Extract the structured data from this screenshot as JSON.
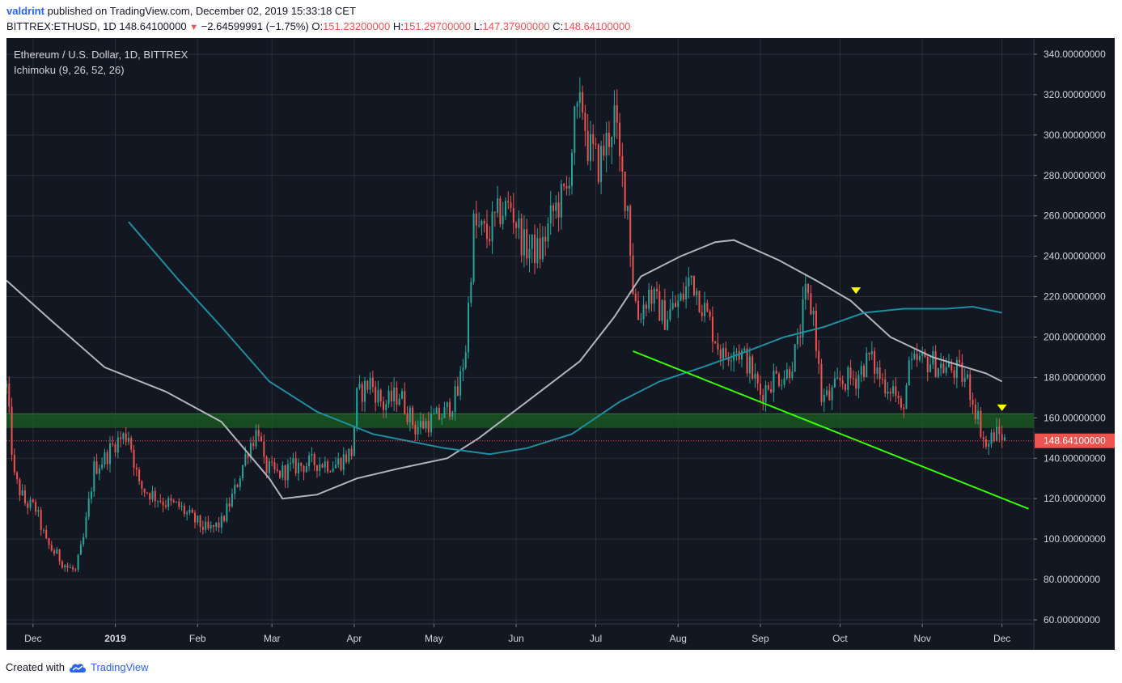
{
  "header": {
    "user": "valdrint",
    "published_text": "published on TradingView.com, December 02, 2019 15:33:18 CET",
    "symbol": "BITTREX:ETHUSD, 1D",
    "last": "148.64100000",
    "change": "−2.64599991 (−1.75%)",
    "o_label": "O:",
    "o_value": "151.23200000",
    "h_label": "H:",
    "h_value": "151.29700000",
    "l_label": "L:",
    "l_value": "147.37900000",
    "c_label": "C:",
    "c_value": "148.64100000"
  },
  "legend": {
    "title": "Ethereum / U.S. Dollar, 1D, BITTREX",
    "indicator": "Ichimoku (9, 26, 52, 26)"
  },
  "footer": {
    "created_with": "Created with",
    "brand": "TradingView"
  },
  "colors": {
    "background": "#131722",
    "grid": "#2a2e39",
    "up": "#26a69a",
    "down": "#ef5350",
    "ma_white": "#b2b5be",
    "ma_teal": "#1e8fa0",
    "trendline": "#33ff00",
    "zone": "#1b5e20",
    "marker": "#ffff00",
    "price_label": "#ef5350"
  },
  "chart_data": {
    "type": "candlestick",
    "x_axis": {
      "start": "2018-11-21",
      "end": "2019-12-13",
      "ticks": [
        {
          "date": "2018-12-01",
          "label": "Dec"
        },
        {
          "date": "2019-01-01",
          "label": "2019"
        },
        {
          "date": "2019-02-01",
          "label": "Feb"
        },
        {
          "date": "2019-03-01",
          "label": "Mar"
        },
        {
          "date": "2019-04-01",
          "label": "Apr"
        },
        {
          "date": "2019-05-01",
          "label": "May"
        },
        {
          "date": "2019-06-01",
          "label": "Jun"
        },
        {
          "date": "2019-07-01",
          "label": "Jul"
        },
        {
          "date": "2019-08-01",
          "label": "Aug"
        },
        {
          "date": "2019-09-01",
          "label": "Sep"
        },
        {
          "date": "2019-10-01",
          "label": "Oct"
        },
        {
          "date": "2019-11-01",
          "label": "Nov"
        },
        {
          "date": "2019-12-01",
          "label": "Dec"
        }
      ]
    },
    "y_axis": {
      "min": 58,
      "max": 348,
      "scale": "linear",
      "ticks": [
        "60.00000000",
        "80.00000000",
        "100.00000000",
        "120.00000000",
        "140.00000000",
        "160.00000000",
        "180.00000000",
        "200.00000000",
        "220.00000000",
        "240.00000000",
        "260.00000000",
        "280.00000000",
        "300.00000000",
        "320.00000000",
        "340.00000000"
      ]
    },
    "grid": true,
    "current_price": {
      "value": 148.641,
      "label": "148.64100000"
    },
    "close_path": [
      [
        "2018-11-21",
        175
      ],
      [
        "2018-11-24",
        130
      ],
      [
        "2018-11-28",
        118
      ],
      [
        "2018-12-02",
        115
      ],
      [
        "2018-12-06",
        98
      ],
      [
        "2018-12-10",
        92
      ],
      [
        "2018-12-14",
        86
      ],
      [
        "2018-12-17",
        84
      ],
      [
        "2018-12-20",
        100
      ],
      [
        "2018-12-24",
        135
      ],
      [
        "2018-12-28",
        140
      ],
      [
        "2019-01-01",
        148
      ],
      [
        "2019-01-06",
        152
      ],
      [
        "2019-01-10",
        126
      ],
      [
        "2019-01-15",
        122
      ],
      [
        "2019-01-20",
        118
      ],
      [
        "2019-01-25",
        116
      ],
      [
        "2019-01-30",
        110
      ],
      [
        "2019-02-05",
        104
      ],
      [
        "2019-02-10",
        108
      ],
      [
        "2019-02-15",
        124
      ],
      [
        "2019-02-20",
        145
      ],
      [
        "2019-02-24",
        155
      ],
      [
        "2019-02-26",
        136
      ],
      [
        "2019-03-03",
        132
      ],
      [
        "2019-03-10",
        136
      ],
      [
        "2019-03-18",
        138
      ],
      [
        "2019-03-25",
        137
      ],
      [
        "2019-03-31",
        143
      ],
      [
        "2019-04-02",
        170
      ],
      [
        "2019-04-07",
        178
      ],
      [
        "2019-04-12",
        166
      ],
      [
        "2019-04-18",
        172
      ],
      [
        "2019-04-24",
        155
      ],
      [
        "2019-04-29",
        158
      ],
      [
        "2019-05-05",
        162
      ],
      [
        "2019-05-10",
        172
      ],
      [
        "2019-05-13",
        195
      ],
      [
        "2019-05-16",
        255
      ],
      [
        "2019-05-21",
        250
      ],
      [
        "2019-05-26",
        262
      ],
      [
        "2019-05-30",
        265
      ],
      [
        "2019-06-04",
        245
      ],
      [
        "2019-06-10",
        242
      ],
      [
        "2019-06-15",
        262
      ],
      [
        "2019-06-20",
        272
      ],
      [
        "2019-06-23",
        305
      ],
      [
        "2019-06-26",
        315
      ],
      [
        "2019-06-28",
        295
      ],
      [
        "2019-07-02",
        285
      ],
      [
        "2019-07-06",
        300
      ],
      [
        "2019-07-08",
        310
      ],
      [
        "2019-07-10",
        285
      ],
      [
        "2019-07-13",
        265
      ],
      [
        "2019-07-15",
        225
      ],
      [
        "2019-07-17",
        210
      ],
      [
        "2019-07-21",
        222
      ],
      [
        "2019-07-27",
        210
      ],
      [
        "2019-08-02",
        218
      ],
      [
        "2019-08-06",
        230
      ],
      [
        "2019-08-12",
        210
      ],
      [
        "2019-08-18",
        190
      ],
      [
        "2019-08-22",
        196
      ],
      [
        "2019-08-27",
        188
      ],
      [
        "2019-09-01",
        172
      ],
      [
        "2019-09-06",
        180
      ],
      [
        "2019-09-11",
        182
      ],
      [
        "2019-09-15",
        195
      ],
      [
        "2019-09-18",
        220
      ],
      [
        "2019-09-21",
        212
      ],
      [
        "2019-09-24",
        170
      ],
      [
        "2019-09-27",
        170
      ],
      [
        "2019-10-01",
        178
      ],
      [
        "2019-10-07",
        180
      ],
      [
        "2019-10-12",
        190
      ],
      [
        "2019-10-17",
        178
      ],
      [
        "2019-10-21",
        175
      ],
      [
        "2019-10-24",
        162
      ],
      [
        "2019-10-27",
        183
      ],
      [
        "2019-10-30",
        188
      ],
      [
        "2019-11-04",
        188
      ],
      [
        "2019-11-09",
        185
      ],
      [
        "2019-11-14",
        183
      ],
      [
        "2019-11-18",
        178
      ],
      [
        "2019-11-22",
        160
      ],
      [
        "2019-11-25",
        145
      ],
      [
        "2019-11-28",
        152
      ],
      [
        "2019-12-01",
        151
      ],
      [
        "2019-12-02",
        148.6
      ]
    ],
    "series": [
      {
        "type": "line",
        "color": "white",
        "points": [
          [
            "2018-11-21",
            228
          ],
          [
            "2018-12-08",
            208
          ],
          [
            "2018-12-28",
            185
          ],
          [
            "2019-01-20",
            173
          ],
          [
            "2019-02-10",
            158
          ],
          [
            "2019-02-28",
            130
          ],
          [
            "2019-03-05",
            120
          ],
          [
            "2019-03-18",
            122
          ],
          [
            "2019-04-02",
            130
          ],
          [
            "2019-04-18",
            135
          ],
          [
            "2019-05-06",
            140
          ],
          [
            "2019-05-18",
            150
          ],
          [
            "2019-06-05",
            168
          ],
          [
            "2019-06-25",
            188
          ],
          [
            "2019-07-08",
            210
          ],
          [
            "2019-07-18",
            230
          ],
          [
            "2019-08-02",
            240
          ],
          [
            "2019-08-15",
            247
          ],
          [
            "2019-08-22",
            248
          ],
          [
            "2019-09-08",
            238
          ],
          [
            "2019-09-22",
            228
          ],
          [
            "2019-10-05",
            218
          ],
          [
            "2019-10-20",
            200
          ],
          [
            "2019-11-05",
            190
          ],
          [
            "2019-11-25",
            182
          ],
          [
            "2019-12-01",
            178
          ]
        ]
      },
      {
        "type": "line",
        "color": "teal",
        "points": [
          [
            "2019-01-06",
            257
          ],
          [
            "2019-01-25",
            228
          ],
          [
            "2019-02-10",
            205
          ],
          [
            "2019-02-28",
            178
          ],
          [
            "2019-03-18",
            163
          ],
          [
            "2019-04-08",
            152
          ],
          [
            "2019-05-05",
            145
          ],
          [
            "2019-05-22",
            142
          ],
          [
            "2019-06-05",
            145
          ],
          [
            "2019-06-22",
            152
          ],
          [
            "2019-07-10",
            168
          ],
          [
            "2019-07-25",
            178
          ],
          [
            "2019-08-10",
            185
          ],
          [
            "2019-08-25",
            192
          ],
          [
            "2019-09-10",
            200
          ],
          [
            "2019-09-25",
            205
          ],
          [
            "2019-10-10",
            212
          ],
          [
            "2019-10-25",
            214
          ],
          [
            "2019-11-10",
            214
          ],
          [
            "2019-11-20",
            215
          ],
          [
            "2019-12-01",
            212
          ]
        ]
      }
    ],
    "trendline": {
      "color": "green",
      "from": [
        "2019-07-15",
        193
      ],
      "to": [
        "2019-12-11",
        115
      ]
    },
    "support_zone": {
      "low": 155,
      "high": 162
    },
    "markers": [
      {
        "date": "2019-10-07",
        "value": 223
      },
      {
        "date": "2019-12-01",
        "value": 165
      }
    ]
  }
}
